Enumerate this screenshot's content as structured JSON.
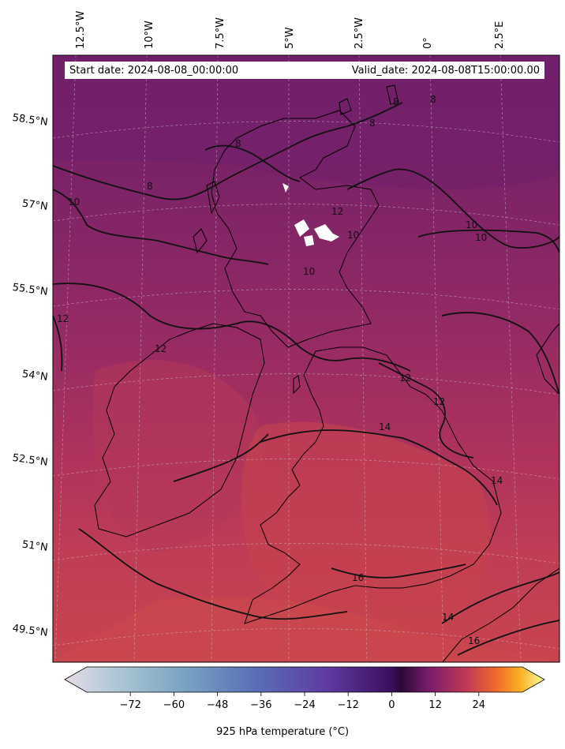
{
  "header": {
    "start_date": "Start date: 2024-08-08_00:00:00",
    "valid_date": "Valid_date: 2024-08-08T15:00:00.00"
  },
  "map": {
    "lon_labels": [
      "12.5°W",
      "10°W",
      "7.5°W",
      "5°W",
      "2.5°W",
      "0°",
      "2.5°E"
    ],
    "lat_labels": [
      "58.5°N",
      "57°N",
      "55.5°N",
      "54°N",
      "52.5°N",
      "51°N",
      "49.5°N"
    ],
    "contour_levels": [
      "8",
      "10",
      "12",
      "14",
      "16"
    ],
    "colors": {
      "north": "#7a2068",
      "mid": "#9a2a64",
      "south": "#c23f52",
      "contour": "#111111",
      "coast": "#000000"
    }
  },
  "colorbar": {
    "label": "925 hPa temperature ($^\\circ$C)",
    "display_label": "925 hPa temperature (°C)",
    "ticks": [
      "−72",
      "−60",
      "−48",
      "−36",
      "−24",
      "−12",
      "0",
      "12",
      "24"
    ],
    "tick_values": [
      -72,
      -60,
      -48,
      -36,
      -24,
      -12,
      0,
      12,
      24
    ],
    "range": [
      -84,
      36
    ]
  }
}
